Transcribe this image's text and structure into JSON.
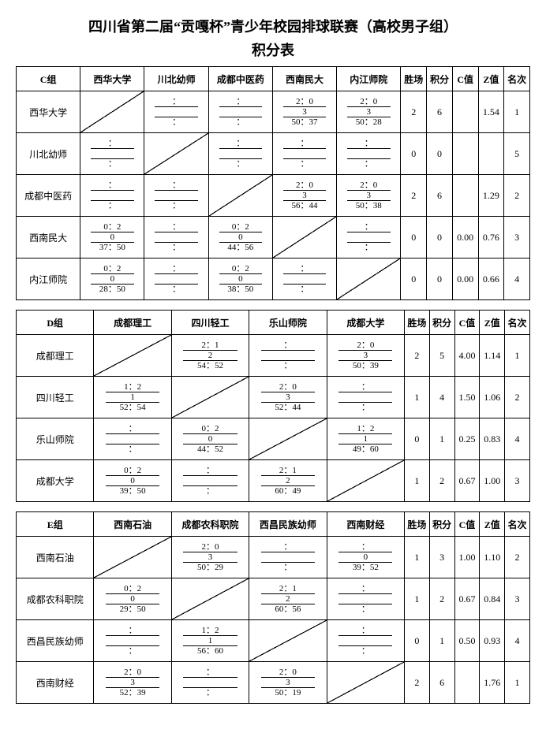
{
  "title": "四川省第二届“贡嘎杯”青少年校园排球联赛（高校男子组）",
  "subtitle": "积分表",
  "stat_headers": [
    "胜场",
    "积分",
    "C值",
    "Z值",
    "名次"
  ],
  "groups": [
    {
      "name": "C组",
      "teams": [
        "西华大学",
        "川北幼师",
        "成都中医药",
        "西南民大",
        "内江师院"
      ],
      "cells": [
        [
          null,
          [
            "",
            "",
            ""
          ],
          [
            "",
            "",
            ""
          ],
          [
            "2：0",
            "3",
            "50：37"
          ],
          [
            "2：0",
            "3",
            "50：28"
          ]
        ],
        [
          [
            "",
            "",
            ""
          ],
          null,
          [
            "",
            "",
            ""
          ],
          [
            "",
            "",
            ""
          ],
          [
            "",
            "",
            ""
          ]
        ],
        [
          [
            "",
            "",
            ""
          ],
          [
            "",
            "",
            ""
          ],
          null,
          [
            "2：0",
            "3",
            "56：44"
          ],
          [
            "2：0",
            "3",
            "50：38"
          ]
        ],
        [
          [
            "0：2",
            "0",
            "37：50"
          ],
          [
            "",
            "",
            ""
          ],
          [
            "0：2",
            "0",
            "44：56"
          ],
          null,
          [
            "",
            "",
            ""
          ]
        ],
        [
          [
            "0：2",
            "0",
            "28：50"
          ],
          [
            "",
            "",
            ""
          ],
          [
            "0：2",
            "0",
            "38：50"
          ],
          [
            "",
            "",
            ""
          ],
          null
        ]
      ],
      "stats": [
        [
          "2",
          "6",
          "",
          "1.54",
          "1"
        ],
        [
          "0",
          "0",
          "",
          "",
          "5"
        ],
        [
          "2",
          "6",
          "",
          "1.29",
          "2"
        ],
        [
          "0",
          "0",
          "0.00",
          "0.76",
          "3"
        ],
        [
          "0",
          "0",
          "0.00",
          "0.66",
          "4"
        ]
      ]
    },
    {
      "name": "D组",
      "teams": [
        "成都理工",
        "四川轻工",
        "乐山师院",
        "成都大学"
      ],
      "cells": [
        [
          null,
          [
            "2：1",
            "2",
            "54：52"
          ],
          [
            "",
            "",
            ""
          ],
          [
            "2：0",
            "3",
            "50：39"
          ]
        ],
        [
          [
            "1：2",
            "1",
            "52：54"
          ],
          null,
          [
            "2：0",
            "3",
            "52：44"
          ],
          [
            "",
            "",
            ""
          ]
        ],
        [
          [
            "",
            "",
            ""
          ],
          [
            "0：2",
            "0",
            "44：52"
          ],
          null,
          [
            "1：2",
            "1",
            "49：60"
          ]
        ],
        [
          [
            "0：2",
            "0",
            "39：50"
          ],
          [
            "",
            "",
            ""
          ],
          [
            "2：1",
            "2",
            "60：49"
          ],
          null
        ]
      ],
      "stats": [
        [
          "2",
          "5",
          "4.00",
          "1.14",
          "1"
        ],
        [
          "1",
          "4",
          "1.50",
          "1.06",
          "2"
        ],
        [
          "0",
          "1",
          "0.25",
          "0.83",
          "4"
        ],
        [
          "1",
          "2",
          "0.67",
          "1.00",
          "3"
        ]
      ]
    },
    {
      "name": "E组",
      "teams": [
        "西南石油",
        "成都农科职院",
        "西昌民族幼师",
        "西南财经"
      ],
      "cells": [
        [
          null,
          [
            "2：0",
            "3",
            "50：29"
          ],
          [
            "",
            "",
            ""
          ],
          [
            "",
            "0",
            "39：52"
          ]
        ],
        [
          [
            "0：2",
            "0",
            "29：50"
          ],
          null,
          [
            "2：1",
            "2",
            "60：56"
          ],
          [
            "",
            "",
            ""
          ]
        ],
        [
          [
            "",
            "",
            ""
          ],
          [
            "1：2",
            "1",
            "56：60"
          ],
          null,
          [
            "",
            "",
            ""
          ]
        ],
        [
          [
            "2：0",
            "3",
            "52：39"
          ],
          [
            "",
            "",
            ""
          ],
          [
            "2：0",
            "3",
            "50：19"
          ],
          null
        ]
      ],
      "stats": [
        [
          "1",
          "3",
          "1.00",
          "1.10",
          "2"
        ],
        [
          "1",
          "2",
          "0.67",
          "0.84",
          "3"
        ],
        [
          "0",
          "1",
          "0.50",
          "0.93",
          "4"
        ],
        [
          "2",
          "6",
          "",
          "1.76",
          "1"
        ]
      ]
    }
  ]
}
